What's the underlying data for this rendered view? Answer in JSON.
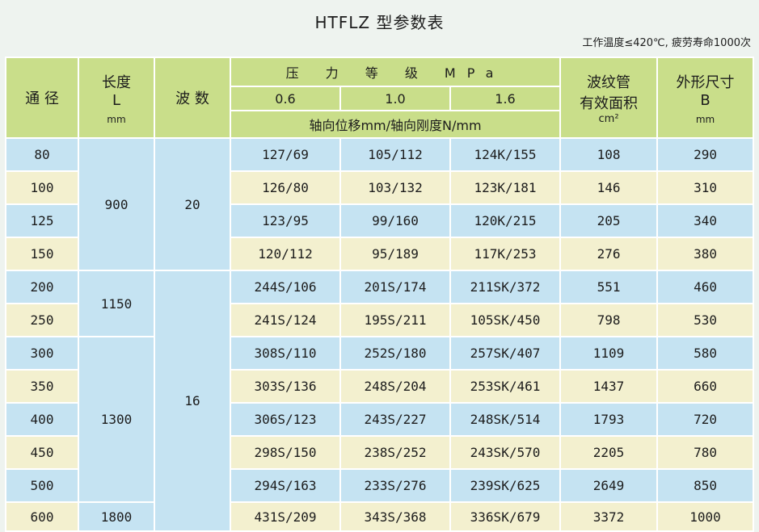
{
  "title": "HTFLZ 型参数表",
  "note": "工作温度≤420℃, 疲劳寿命1000次",
  "headers": {
    "diameter": "通 径",
    "length": "长度",
    "length_symbol": "L",
    "length_unit": "mm",
    "waves": "波 数",
    "pressure": "压 力 等 级 MPa",
    "pressure_levels": [
      "0.6",
      "1.0",
      "1.6"
    ],
    "displacement": "轴向位移mm/轴向刚度N/mm",
    "area_line1": "波纹管",
    "area_line2": "有效面积",
    "area_unit": "cm²",
    "outer_line1": "外形尺寸",
    "outer_symbol": "B",
    "outer_unit": "mm"
  },
  "rows": [
    {
      "dn": "80",
      "p06": "127/69",
      "p10": "105/112",
      "p16": "124K/155",
      "area": "108",
      "b": "290"
    },
    {
      "dn": "100",
      "p06": "126/80",
      "p10": "103/132",
      "p16": "123K/181",
      "area": "146",
      "b": "310"
    },
    {
      "dn": "125",
      "p06": "123/95",
      "p10": "99/160",
      "p16": "120K/215",
      "area": "205",
      "b": "340"
    },
    {
      "dn": "150",
      "p06": "120/112",
      "p10": "95/189",
      "p16": "117K/253",
      "area": "276",
      "b": "380"
    },
    {
      "dn": "200",
      "p06": "244S/106",
      "p10": "201S/174",
      "p16": "211SK/372",
      "area": "551",
      "b": "460"
    },
    {
      "dn": "250",
      "p06": "241S/124",
      "p10": "195S/211",
      "p16": "105SK/450",
      "area": "798",
      "b": "530"
    },
    {
      "dn": "300",
      "p06": "308S/110",
      "p10": "252S/180",
      "p16": "257SK/407",
      "area": "1109",
      "b": "580"
    },
    {
      "dn": "350",
      "p06": "303S/136",
      "p10": "248S/204",
      "p16": "253SK/461",
      "area": "1437",
      "b": "660"
    },
    {
      "dn": "400",
      "p06": "306S/123",
      "p10": "243S/227",
      "p16": "248SK/514",
      "area": "1793",
      "b": "720"
    },
    {
      "dn": "450",
      "p06": "298S/150",
      "p10": "238S/252",
      "p16": "243SK/570",
      "area": "2205",
      "b": "780"
    },
    {
      "dn": "500",
      "p06": "294S/163",
      "p10": "233S/276",
      "p16": "239SK/625",
      "area": "2649",
      "b": "850"
    },
    {
      "dn": "600",
      "p06": "431S/209",
      "p10": "343S/368",
      "p16": "336SK/679",
      "area": "3372",
      "b": "1000"
    }
  ],
  "groups": {
    "length_900": "900",
    "length_1150": "1150",
    "length_1300": "1300",
    "length_1800": "1800",
    "waves_20": "20",
    "waves_16": "16"
  },
  "colors": {
    "header_green": "#c9de8a",
    "row_blue": "#c5e3f2",
    "row_cream": "#f3f0cf"
  }
}
